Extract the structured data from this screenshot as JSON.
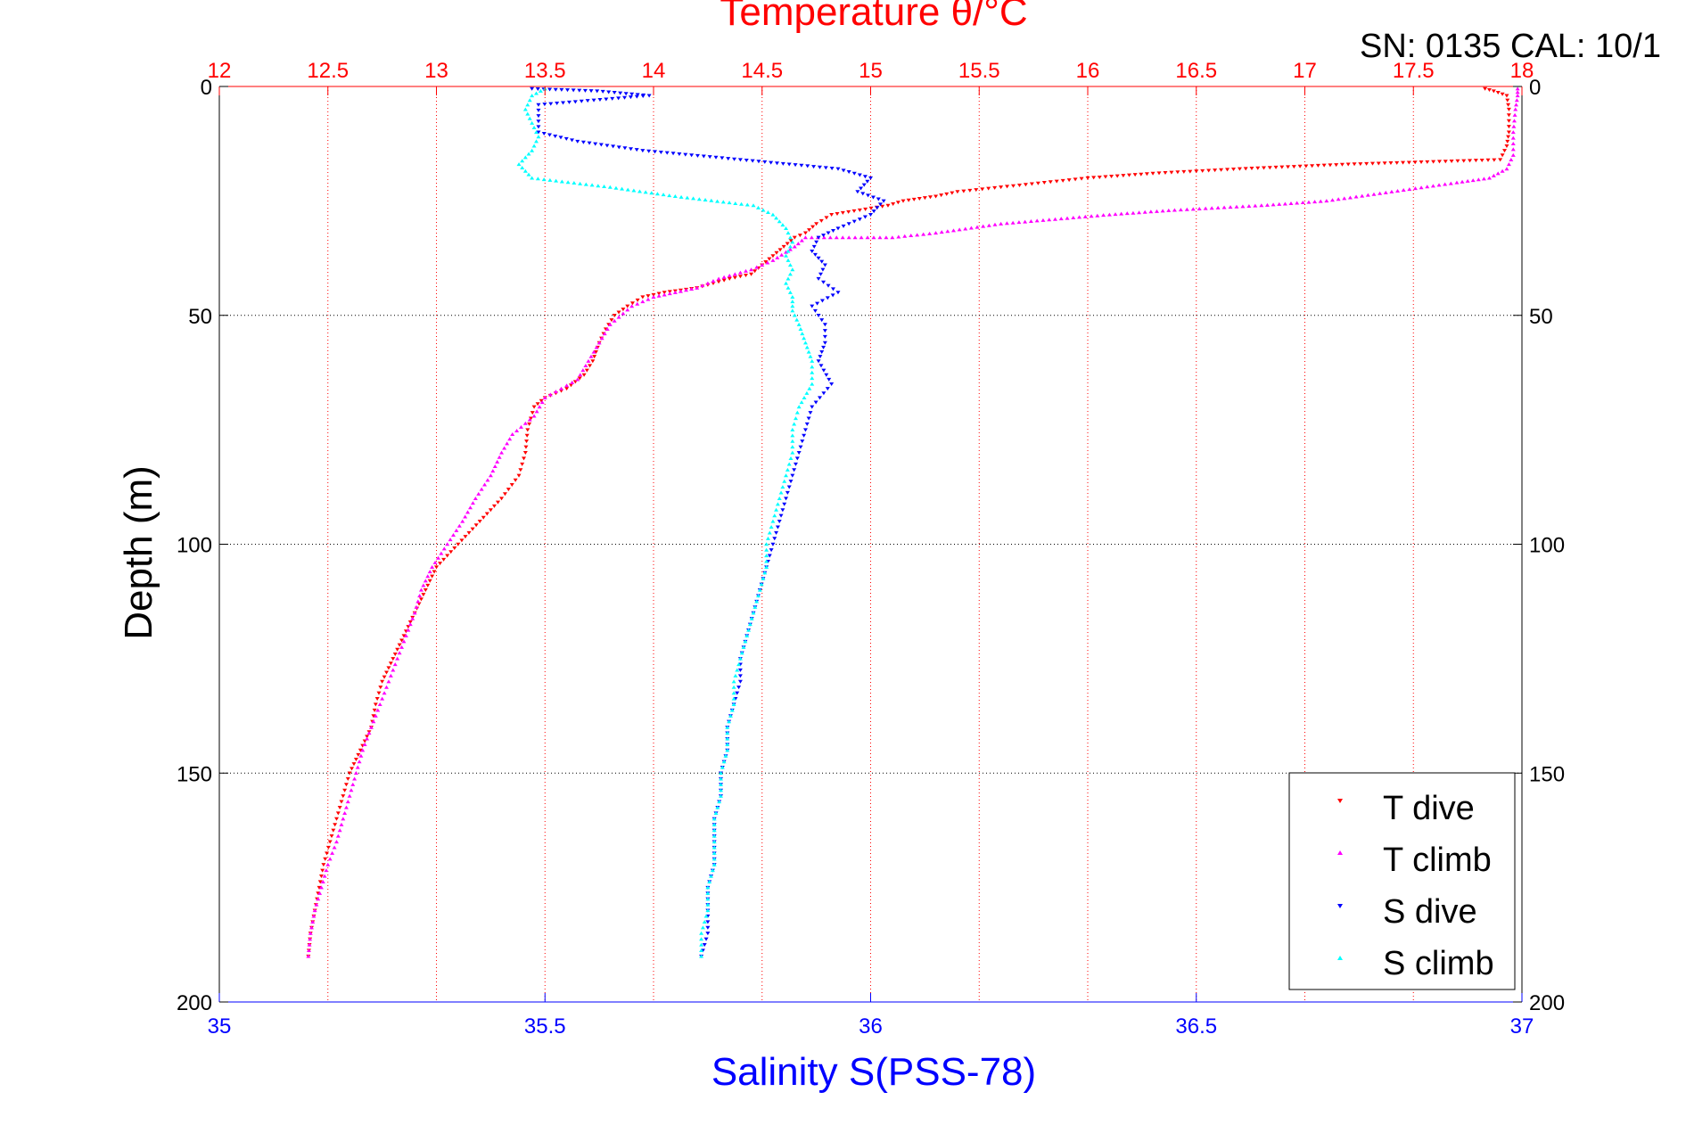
{
  "chart_data": {
    "type": "scatter",
    "title": "Temperature θ/°C",
    "annotation": "SN: 0135  CAL: 10/1",
    "xlabel_top": "Temperature θ/°C",
    "xlabel_bottom": "Salinity S(PSS-78)",
    "ylabel": "Depth (m)",
    "x_top_lim": [
      12,
      18
    ],
    "x_top_ticks": [
      "12",
      "12.5",
      "13",
      "13.5",
      "14",
      "14.5",
      "15",
      "15.5",
      "16",
      "16.5",
      "17",
      "17.5",
      "18"
    ],
    "x_bottom_lim": [
      35,
      37
    ],
    "x_bottom_ticks": [
      "35",
      "35.5",
      "36",
      "36.5",
      "37"
    ],
    "ylim": [
      0,
      200
    ],
    "y_reversed": true,
    "y_ticks": [
      "0",
      "50",
      "100",
      "150",
      "200"
    ],
    "grid": true,
    "legend_position": "bottom-right",
    "legend": [
      "T dive",
      "T climb",
      "S dive",
      "S climb"
    ],
    "colors": {
      "T dive": "#ff0000",
      "T climb": "#ff00ff",
      "S dive": "#0000ff",
      "S climb": "#00ffff",
      "temperature_axis": "#ff0000",
      "salinity_axis": "#0000ff"
    },
    "series": [
      {
        "name": "T dive",
        "axis": "temperature",
        "marker": "triangle-down",
        "points": [
          [
            17.83,
            0.5
          ],
          [
            17.87,
            1
          ],
          [
            17.93,
            2
          ],
          [
            17.94,
            5
          ],
          [
            17.94,
            10
          ],
          [
            17.93,
            13
          ],
          [
            17.9,
            16
          ],
          [
            17.2,
            17
          ],
          [
            16.7,
            18
          ],
          [
            16.3,
            19
          ],
          [
            16.0,
            20
          ],
          [
            15.8,
            21
          ],
          [
            15.6,
            22
          ],
          [
            15.4,
            23
          ],
          [
            15.3,
            24
          ],
          [
            15.15,
            25
          ],
          [
            15.08,
            26
          ],
          [
            14.95,
            27
          ],
          [
            14.82,
            28
          ],
          [
            14.75,
            30
          ],
          [
            14.7,
            32
          ],
          [
            14.65,
            33
          ],
          [
            14.6,
            35
          ],
          [
            14.55,
            37
          ],
          [
            14.5,
            39
          ],
          [
            14.45,
            41
          ],
          [
            14.35,
            42
          ],
          [
            14.2,
            44
          ],
          [
            14.05,
            45
          ],
          [
            13.95,
            46
          ],
          [
            13.88,
            48
          ],
          [
            13.82,
            50
          ],
          [
            13.78,
            53
          ],
          [
            13.75,
            56
          ],
          [
            13.72,
            60
          ],
          [
            13.68,
            63
          ],
          [
            13.6,
            66
          ],
          [
            13.5,
            68
          ],
          [
            13.45,
            70
          ],
          [
            13.42,
            75
          ],
          [
            13.41,
            80
          ],
          [
            13.38,
            85
          ],
          [
            13.3,
            90
          ],
          [
            13.2,
            95
          ],
          [
            13.1,
            100
          ],
          [
            13.0,
            105
          ],
          [
            12.95,
            110
          ],
          [
            12.9,
            115
          ],
          [
            12.85,
            120
          ],
          [
            12.8,
            125
          ],
          [
            12.75,
            130
          ],
          [
            12.72,
            135
          ],
          [
            12.7,
            140
          ],
          [
            12.65,
            145
          ],
          [
            12.6,
            150
          ],
          [
            12.57,
            155
          ],
          [
            12.54,
            160
          ],
          [
            12.51,
            165
          ],
          [
            12.48,
            170
          ],
          [
            12.46,
            175
          ],
          [
            12.44,
            180
          ],
          [
            12.42,
            185
          ],
          [
            12.41,
            190
          ]
        ]
      },
      {
        "name": "T climb",
        "axis": "temperature",
        "marker": "triangle-up",
        "points": [
          [
            12.41,
            190
          ],
          [
            12.42,
            185
          ],
          [
            12.44,
            180
          ],
          [
            12.47,
            175
          ],
          [
            12.5,
            170
          ],
          [
            12.54,
            165
          ],
          [
            12.57,
            160
          ],
          [
            12.6,
            155
          ],
          [
            12.63,
            150
          ],
          [
            12.66,
            145
          ],
          [
            12.7,
            140
          ],
          [
            12.74,
            135
          ],
          [
            12.78,
            130
          ],
          [
            12.82,
            125
          ],
          [
            12.86,
            120
          ],
          [
            12.9,
            115
          ],
          [
            12.93,
            110
          ],
          [
            12.98,
            105
          ],
          [
            13.05,
            100
          ],
          [
            13.12,
            95
          ],
          [
            13.18,
            90
          ],
          [
            13.25,
            85
          ],
          [
            13.3,
            80
          ],
          [
            13.35,
            76
          ],
          [
            13.45,
            72
          ],
          [
            13.5,
            68
          ],
          [
            13.65,
            64
          ],
          [
            13.7,
            60
          ],
          [
            13.75,
            56
          ],
          [
            13.8,
            52
          ],
          [
            13.9,
            48
          ],
          [
            14.0,
            46
          ],
          [
            14.2,
            44
          ],
          [
            14.3,
            42
          ],
          [
            14.45,
            40
          ],
          [
            14.55,
            38
          ],
          [
            14.65,
            35
          ],
          [
            14.7,
            33
          ],
          [
            15.1,
            33
          ],
          [
            15.3,
            32
          ],
          [
            15.6,
            30
          ],
          [
            16.1,
            28
          ],
          [
            16.4,
            27
          ],
          [
            16.8,
            26
          ],
          [
            17.1,
            25
          ],
          [
            17.4,
            23
          ],
          [
            17.7,
            21
          ],
          [
            17.85,
            20
          ],
          [
            17.93,
            18
          ],
          [
            17.96,
            15
          ],
          [
            17.96,
            10
          ],
          [
            17.97,
            5
          ],
          [
            17.98,
            2
          ],
          [
            17.98,
            0.5
          ]
        ]
      },
      {
        "name": "S dive",
        "axis": "salinity",
        "marker": "triangle-down",
        "points": [
          [
            35.48,
            0.5
          ],
          [
            35.58,
            1
          ],
          [
            35.66,
            2
          ],
          [
            35.49,
            4
          ],
          [
            35.49,
            10
          ],
          [
            35.55,
            12
          ],
          [
            35.65,
            14
          ],
          [
            35.8,
            16
          ],
          [
            35.95,
            18
          ],
          [
            36.0,
            20
          ],
          [
            35.98,
            23
          ],
          [
            36.02,
            25
          ],
          [
            36.0,
            28
          ],
          [
            35.95,
            31
          ],
          [
            35.92,
            33
          ],
          [
            35.91,
            36
          ],
          [
            35.93,
            39
          ],
          [
            35.92,
            42
          ],
          [
            35.95,
            45
          ],
          [
            35.91,
            48
          ],
          [
            35.93,
            52
          ],
          [
            35.93,
            56
          ],
          [
            35.92,
            60
          ],
          [
            35.94,
            65
          ],
          [
            35.91,
            70
          ],
          [
            35.9,
            75
          ],
          [
            35.89,
            80
          ],
          [
            35.88,
            85
          ],
          [
            35.87,
            90
          ],
          [
            35.86,
            95
          ],
          [
            35.85,
            100
          ],
          [
            35.84,
            105
          ],
          [
            35.83,
            110
          ],
          [
            35.82,
            115
          ],
          [
            35.81,
            120
          ],
          [
            35.8,
            125
          ],
          [
            35.8,
            130
          ],
          [
            35.79,
            135
          ],
          [
            35.78,
            140
          ],
          [
            35.78,
            145
          ],
          [
            35.77,
            150
          ],
          [
            35.77,
            155
          ],
          [
            35.76,
            160
          ],
          [
            35.76,
            165
          ],
          [
            35.76,
            170
          ],
          [
            35.75,
            175
          ],
          [
            35.75,
            180
          ],
          [
            35.75,
            185
          ],
          [
            35.74,
            190
          ]
        ]
      },
      {
        "name": "S climb",
        "axis": "salinity",
        "marker": "triangle-up",
        "points": [
          [
            35.74,
            190
          ],
          [
            35.74,
            185
          ],
          [
            35.75,
            180
          ],
          [
            35.75,
            175
          ],
          [
            35.76,
            170
          ],
          [
            35.76,
            165
          ],
          [
            35.76,
            160
          ],
          [
            35.77,
            155
          ],
          [
            35.77,
            150
          ],
          [
            35.78,
            145
          ],
          [
            35.78,
            140
          ],
          [
            35.79,
            135
          ],
          [
            35.79,
            130
          ],
          [
            35.8,
            125
          ],
          [
            35.81,
            120
          ],
          [
            35.82,
            115
          ],
          [
            35.83,
            110
          ],
          [
            35.84,
            105
          ],
          [
            35.84,
            100
          ],
          [
            35.85,
            95
          ],
          [
            35.86,
            90
          ],
          [
            35.87,
            85
          ],
          [
            35.88,
            80
          ],
          [
            35.88,
            75
          ],
          [
            35.89,
            70
          ],
          [
            35.91,
            65
          ],
          [
            35.91,
            60
          ],
          [
            35.9,
            56
          ],
          [
            35.89,
            52
          ],
          [
            35.88,
            49
          ],
          [
            35.88,
            46
          ],
          [
            35.87,
            43
          ],
          [
            35.88,
            40
          ],
          [
            35.87,
            37
          ],
          [
            35.88,
            34
          ],
          [
            35.87,
            31
          ],
          [
            35.85,
            28
          ],
          [
            35.82,
            26
          ],
          [
            35.7,
            24
          ],
          [
            35.6,
            22
          ],
          [
            35.48,
            20
          ],
          [
            35.46,
            17
          ],
          [
            35.48,
            14
          ],
          [
            35.49,
            11
          ],
          [
            35.48,
            8
          ],
          [
            35.47,
            5
          ],
          [
            35.48,
            2
          ],
          [
            35.5,
            0.5
          ]
        ]
      }
    ]
  }
}
